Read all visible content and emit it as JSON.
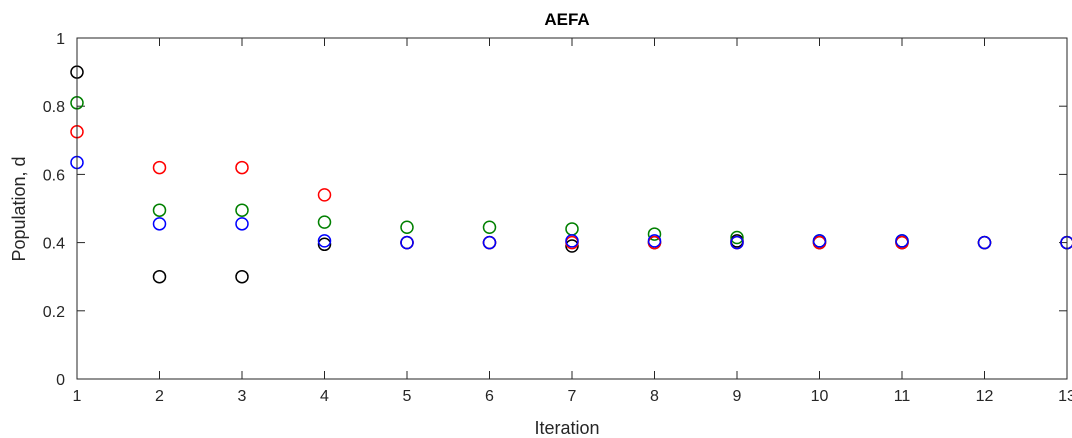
{
  "chart_data": {
    "type": "scatter",
    "title": "AEFA",
    "xlabel": "Iteration",
    "ylabel": "Population, d",
    "xlim": [
      1,
      13
    ],
    "ylim": [
      0,
      1
    ],
    "xticks": [
      1,
      2,
      3,
      4,
      5,
      6,
      7,
      8,
      9,
      10,
      11,
      12,
      13
    ],
    "yticks": [
      0,
      0.2,
      0.4,
      0.6,
      0.8,
      1
    ],
    "ytick_labels": [
      "0",
      "0.2",
      "0.4",
      "0.6",
      "0.8",
      "1"
    ],
    "marker": "circle-open",
    "grid": false,
    "x": [
      1,
      2,
      3,
      4,
      5,
      6,
      7,
      8,
      9,
      10,
      11,
      12,
      13
    ],
    "series": [
      {
        "color": "#000000",
        "values": [
          0.9,
          0.3,
          0.3,
          0.395,
          0.4,
          0.4,
          0.39,
          0.4,
          0.405,
          0.4,
          0.4,
          0.4,
          0.4
        ]
      },
      {
        "color": "#008000",
        "values": [
          0.81,
          0.495,
          0.495,
          0.46,
          0.445,
          0.445,
          0.44,
          0.425,
          0.415,
          0.405,
          0.405,
          0.4,
          0.4
        ]
      },
      {
        "color": "#ff0000",
        "values": [
          0.725,
          0.62,
          0.62,
          0.54,
          0.4,
          0.4,
          0.4,
          0.4,
          0.4,
          0.4,
          0.4,
          0.4,
          0.4
        ]
      },
      {
        "color": "#0000ff",
        "values": [
          0.635,
          0.455,
          0.455,
          0.405,
          0.4,
          0.4,
          0.405,
          0.405,
          0.4,
          0.405,
          0.405,
          0.4,
          0.4
        ]
      }
    ]
  }
}
